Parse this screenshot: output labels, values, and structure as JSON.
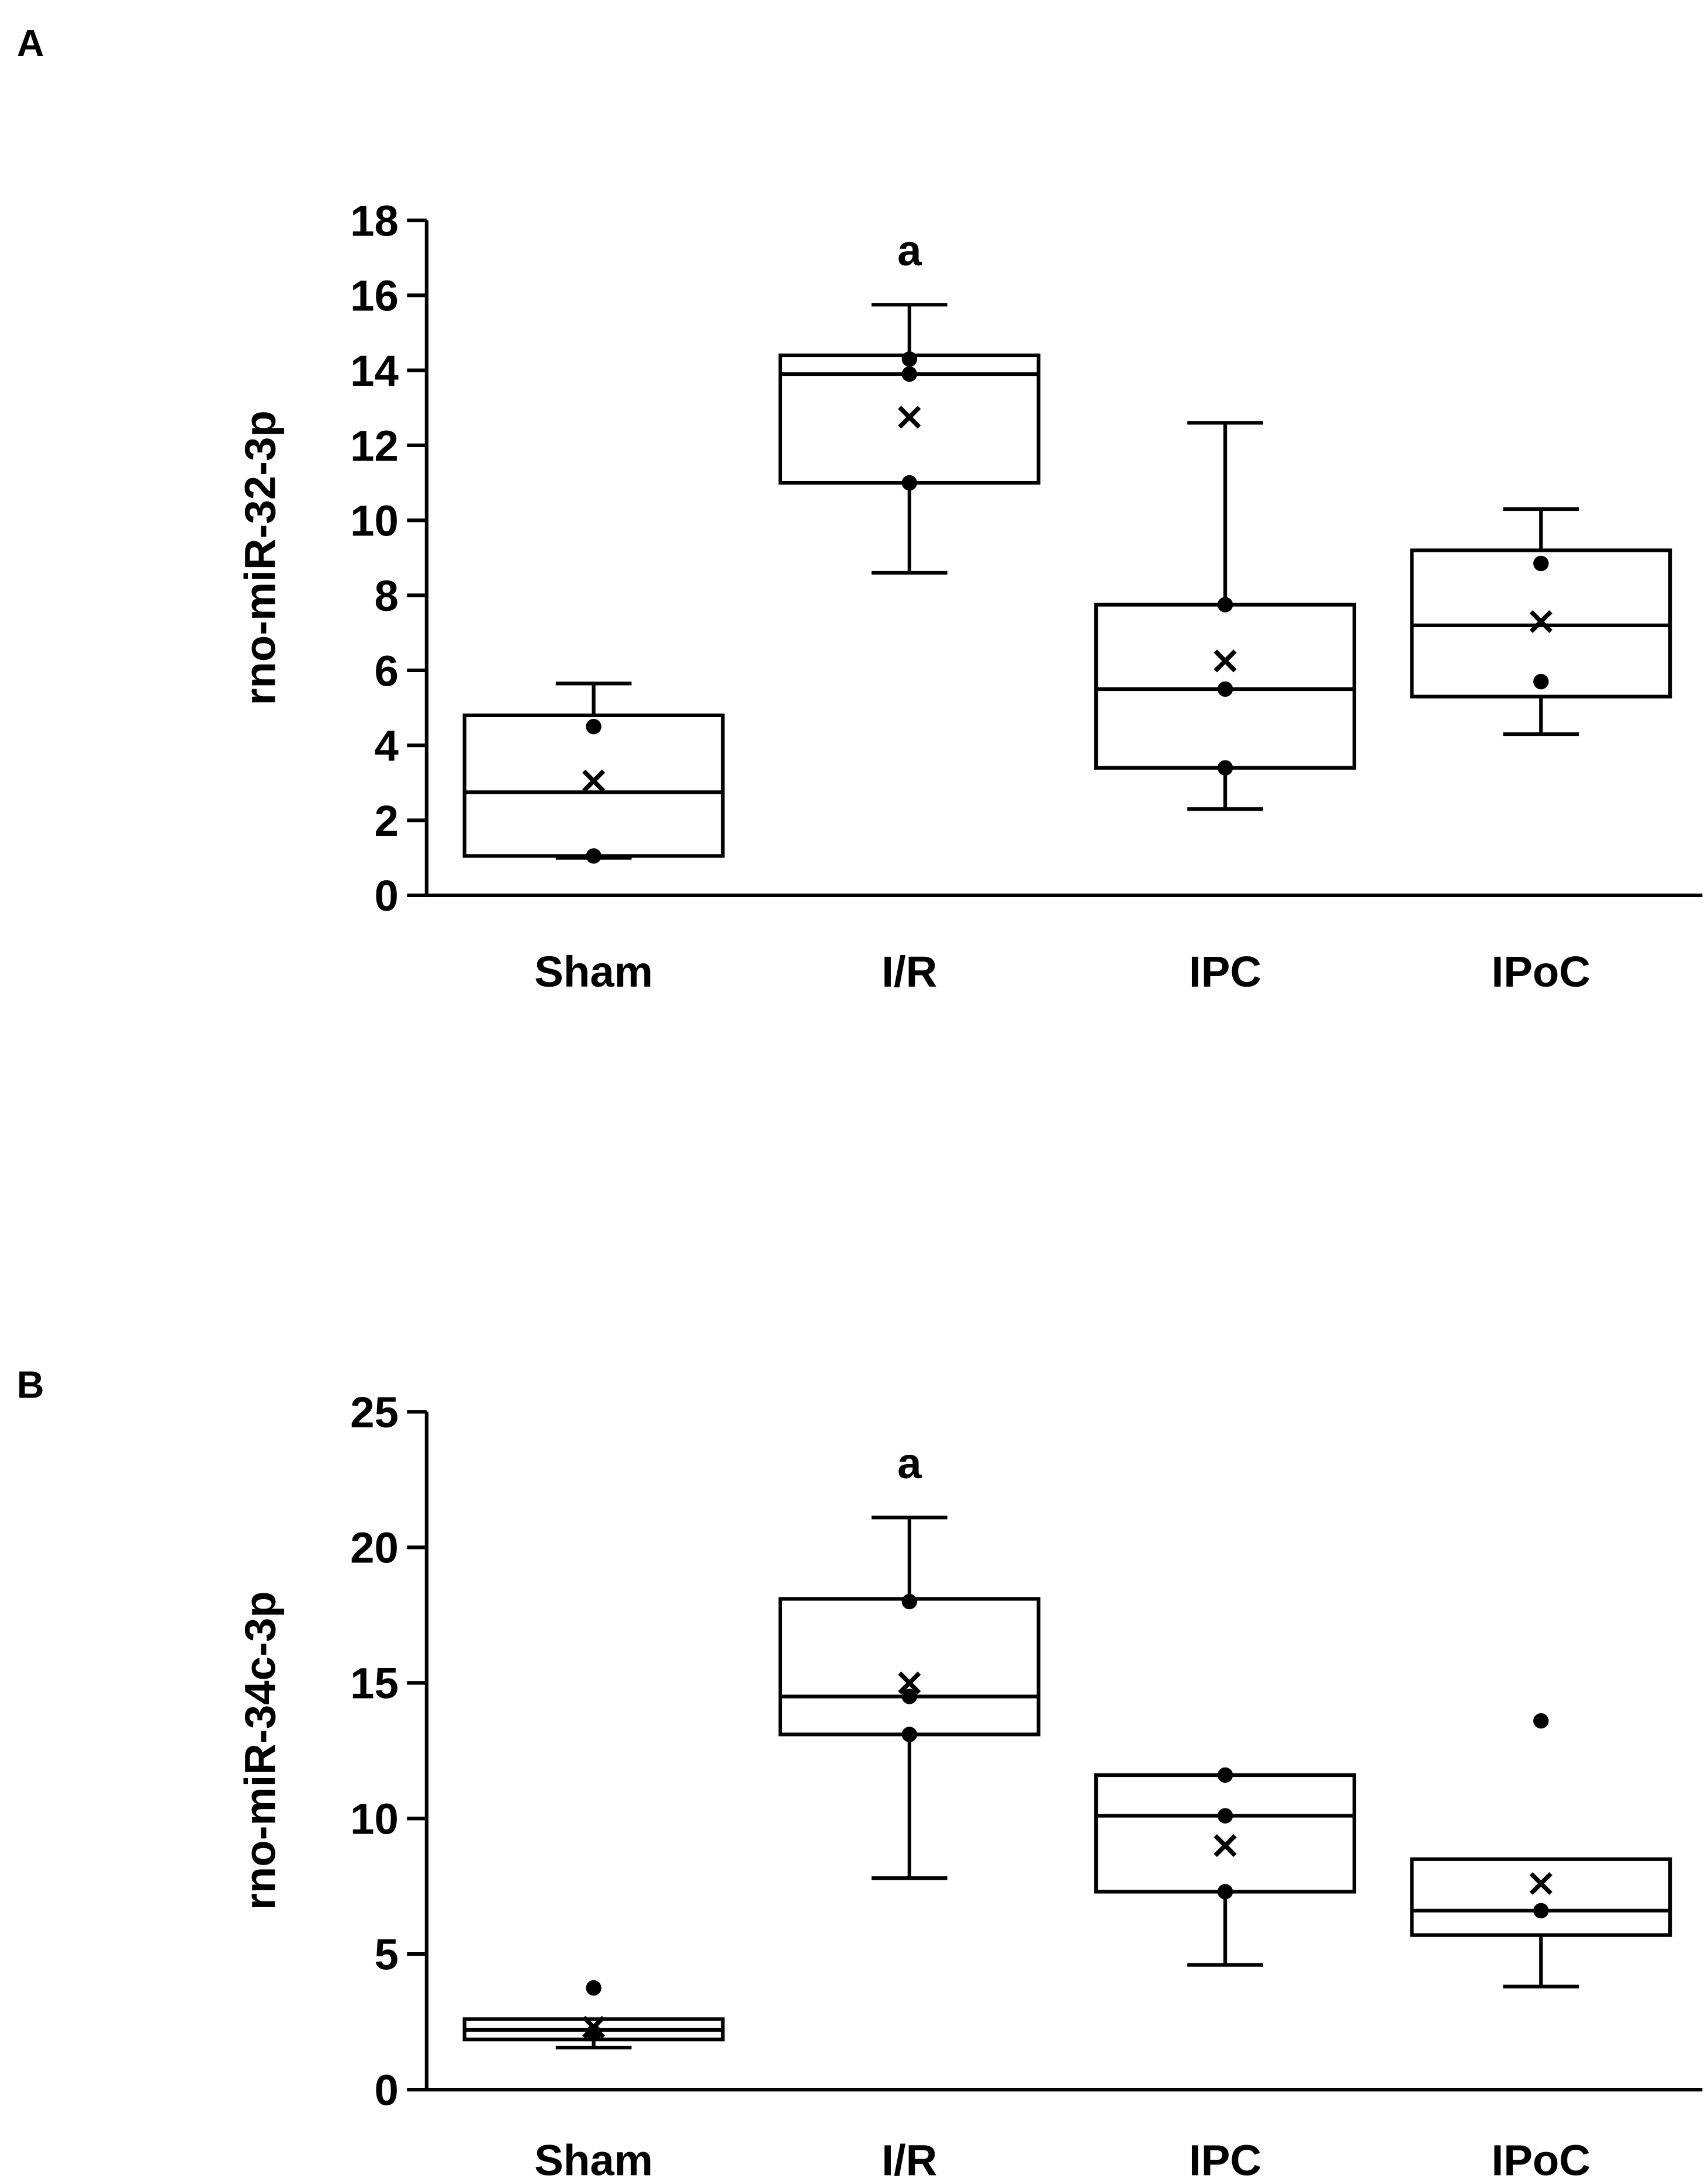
{
  "chart_data": [
    {
      "type": "box",
      "panel_label": "A",
      "ylabel": "rno-miR-32-3p",
      "xlabel": "",
      "ylim": [
        0,
        18
      ],
      "yticks": [
        0,
        2,
        4,
        6,
        8,
        10,
        12,
        14,
        16,
        18
      ],
      "ytick_labels": [
        "0",
        "2",
        "4",
        "6",
        "8",
        "10",
        "12",
        "14",
        "16",
        "18"
      ],
      "categories": [
        "Sham",
        "I/R",
        "IPC",
        "IPoC"
      ],
      "groups": [
        {
          "name": "Sham",
          "whisker_low": 1.0,
          "q1": 1.05,
          "median": 2.75,
          "q3": 4.8,
          "whisker_high": 5.65,
          "mean": 3.05,
          "points": [
            1.05,
            4.5
          ],
          "annotation": ""
        },
        {
          "name": "I/R",
          "whisker_low": 8.6,
          "q1": 11.0,
          "median": 13.9,
          "q3": 14.4,
          "whisker_high": 15.75,
          "mean": 12.75,
          "points": [
            11.0,
            13.9,
            14.3
          ],
          "annotation": "a"
        },
        {
          "name": "IPC",
          "whisker_low": 2.3,
          "q1": 3.4,
          "median": 5.5,
          "q3": 7.75,
          "whisker_high": 12.6,
          "mean": 6.25,
          "points": [
            3.4,
            5.5,
            7.75
          ],
          "annotation": ""
        },
        {
          "name": "IPoC",
          "whisker_low": 4.3,
          "q1": 5.3,
          "median": 7.2,
          "q3": 9.2,
          "whisker_high": 10.3,
          "mean": 7.3,
          "points": [
            5.7,
            8.85
          ],
          "annotation": ""
        }
      ]
    },
    {
      "type": "box",
      "panel_label": "B",
      "ylabel": "rno-miR-34c-3p",
      "xlabel": "",
      "ylim": [
        0,
        25
      ],
      "yticks": [
        0,
        5,
        10,
        15,
        20,
        25
      ],
      "ytick_labels": [
        "0",
        "5",
        "10",
        "15",
        "20",
        "25"
      ],
      "categories": [
        "Sham",
        "I/R",
        "IPC",
        "IPoC"
      ],
      "groups": [
        {
          "name": "Sham",
          "whisker_low": 1.55,
          "q1": 1.85,
          "median": 2.2,
          "q3": 2.6,
          "whisker_high": 2.6,
          "mean": 2.3,
          "points": [
            2.1,
            3.75
          ],
          "annotation": ""
        },
        {
          "name": "I/R",
          "whisker_low": 7.8,
          "q1": 13.1,
          "median": 14.5,
          "q3": 18.1,
          "whisker_high": 21.1,
          "mean": 15.0,
          "points": [
            13.1,
            14.5,
            18.0
          ],
          "annotation": "a"
        },
        {
          "name": "IPC",
          "whisker_low": 4.6,
          "q1": 7.3,
          "median": 10.1,
          "q3": 11.6,
          "whisker_high": 11.6,
          "mean": 9.0,
          "points": [
            7.3,
            10.1,
            11.6
          ],
          "annotation": ""
        },
        {
          "name": "IPoC",
          "whisker_low": 3.8,
          "q1": 5.7,
          "median": 6.6,
          "q3": 8.5,
          "whisker_high": 8.5,
          "mean": 7.6,
          "points": [
            6.6,
            13.6
          ],
          "annotation": ""
        }
      ]
    }
  ]
}
